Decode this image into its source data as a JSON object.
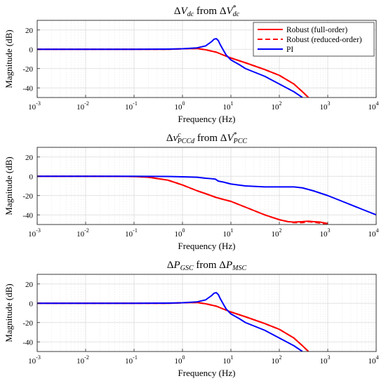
{
  "chart_data": [
    {
      "type": "line",
      "title": "ΔV_dc from ΔV*_dc",
      "xlabel": "Frequency (Hz)",
      "ylabel": "Magnitude (dB)",
      "xscale": "log",
      "xlim": [
        0.001,
        10000
      ],
      "ylim": [
        -50,
        30
      ],
      "yticks": [
        -40,
        -20,
        0,
        20
      ],
      "xticks": [
        "10^-3",
        "10^-2",
        "10^-1",
        "10^0",
        "10^1",
        "10^2",
        "10^3",
        "10^4"
      ],
      "grid": true,
      "legend": {
        "location": "top-right",
        "entries": [
          "Robust (full-order)",
          "Robust (reduced-order)",
          "PI"
        ]
      },
      "series": [
        {
          "name": "Robust (full-order)",
          "color": "#ff0000",
          "dash": "solid",
          "x": [
            0.001,
            0.01,
            0.1,
            0.5,
            1,
            2,
            3,
            5,
            7,
            10,
            20,
            50,
            100,
            200,
            300,
            400
          ],
          "y": [
            0,
            0,
            0,
            0,
            0.5,
            0.8,
            -0.5,
            -3,
            -6,
            -9,
            -14,
            -21,
            -27,
            -36,
            -44,
            -50
          ]
        },
        {
          "name": "Robust (reduced-order)",
          "color": "#ff0000",
          "dash": "dashed",
          "x": [
            0.001,
            0.01,
            0.1,
            0.5,
            1,
            2,
            3,
            5,
            7,
            10,
            20,
            50,
            100,
            200,
            300,
            400
          ],
          "y": [
            0,
            0,
            0,
            0,
            0.5,
            0.8,
            -0.5,
            -3,
            -6,
            -9,
            -14,
            -21,
            -27,
            -36,
            -44,
            -50
          ]
        },
        {
          "name": "PI",
          "color": "#0000ff",
          "dash": "solid",
          "x": [
            0.001,
            0.01,
            0.1,
            0.5,
            1,
            2,
            3,
            4,
            4.5,
            5,
            5.5,
            6,
            7,
            8,
            10,
            15,
            20,
            50,
            100,
            200,
            300
          ],
          "y": [
            0,
            0,
            0,
            0.2,
            0.5,
            1.5,
            3.5,
            8,
            10.5,
            11,
            9,
            5,
            -1,
            -6,
            -11,
            -16,
            -20,
            -28,
            -36,
            -44,
            -50
          ]
        }
      ]
    },
    {
      "type": "line",
      "title": "Δv^c_PCCd from ΔV*_PCC",
      "xlabel": "Frequency (Hz)",
      "ylabel": "Magnitude (dB)",
      "xscale": "log",
      "xlim": [
        0.001,
        10000
      ],
      "ylim": [
        -50,
        30
      ],
      "yticks": [
        -40,
        -20,
        0,
        20
      ],
      "xticks": [
        "10^-3",
        "10^-2",
        "10^-1",
        "10^0",
        "10^1",
        "10^2",
        "10^3",
        "10^4"
      ],
      "grid": true,
      "series": [
        {
          "name": "Robust (full-order)",
          "color": "#ff0000",
          "dash": "solid",
          "x": [
            0.001,
            0.01,
            0.05,
            0.1,
            0.2,
            0.5,
            1,
            2,
            3,
            5,
            7,
            10,
            20,
            50,
            100,
            150,
            200,
            300,
            400,
            500,
            700,
            1000
          ],
          "y": [
            0,
            0,
            -0.1,
            -0.3,
            -1,
            -4,
            -9,
            -15,
            -18,
            -22,
            -24,
            -26,
            -32,
            -40,
            -45,
            -47,
            -47.5,
            -47,
            -46.5,
            -47,
            -47.5,
            -49
          ]
        },
        {
          "name": "Robust (reduced-order)",
          "color": "#ff0000",
          "dash": "dashed",
          "x": [
            0.001,
            0.01,
            0.05,
            0.1,
            0.2,
            0.5,
            1,
            2,
            3,
            5,
            7,
            10,
            20,
            50,
            100,
            150,
            200,
            300,
            400,
            500,
            700,
            1000
          ],
          "y": [
            0,
            0,
            -0.1,
            -0.3,
            -1,
            -4,
            -9,
            -15,
            -18,
            -22,
            -24,
            -26,
            -32,
            -40,
            -45,
            -47,
            -48,
            -48,
            -47,
            -47.5,
            -48.5,
            -50
          ]
        },
        {
          "name": "PI",
          "color": "#0000ff",
          "dash": "solid",
          "x": [
            0.001,
            0.01,
            0.1,
            0.5,
            1,
            2,
            3,
            4,
            4.8,
            5.5,
            7,
            10,
            20,
            50,
            100,
            200,
            300,
            500,
            1000,
            2000,
            5000,
            10000
          ],
          "y": [
            0,
            0,
            0,
            -0.2,
            -0.5,
            -1,
            -2,
            -2.5,
            -3,
            -5,
            -6,
            -8,
            -10,
            -11,
            -11,
            -11,
            -12,
            -15,
            -20,
            -26,
            -34,
            -40
          ]
        }
      ]
    },
    {
      "type": "line",
      "title": "ΔP_GSC from ΔP_MSC",
      "xlabel": "Frequency (Hz)",
      "ylabel": "Magnitude (dB)",
      "xscale": "log",
      "xlim": [
        0.001,
        10000
      ],
      "ylim": [
        -50,
        30
      ],
      "yticks": [
        -40,
        -20,
        0,
        20
      ],
      "xticks": [
        "10^-3",
        "10^-2",
        "10^-1",
        "10^0",
        "10^1",
        "10^2",
        "10^3",
        "10^4"
      ],
      "grid": true,
      "series": [
        {
          "name": "Robust (full-order)",
          "color": "#ff0000",
          "dash": "solid",
          "x": [
            0.001,
            0.01,
            0.1,
            0.5,
            1,
            2,
            3,
            5,
            7,
            10,
            20,
            50,
            100,
            200,
            300,
            400
          ],
          "y": [
            0,
            0,
            0,
            0,
            0.5,
            0.8,
            -0.5,
            -3,
            -6,
            -9,
            -14,
            -21,
            -27,
            -36,
            -44,
            -50
          ]
        },
        {
          "name": "Robust (reduced-order)",
          "color": "#ff0000",
          "dash": "dashed",
          "x": [
            0.001,
            0.01,
            0.1,
            0.5,
            1,
            2,
            3,
            5,
            7,
            10,
            20,
            50,
            100,
            200,
            300,
            400
          ],
          "y": [
            0,
            0,
            0,
            0,
            0.5,
            0.8,
            -0.5,
            -3,
            -6,
            -9,
            -14,
            -21,
            -27,
            -36,
            -44,
            -50
          ]
        },
        {
          "name": "PI",
          "color": "#0000ff",
          "dash": "solid",
          "x": [
            0.001,
            0.01,
            0.1,
            0.5,
            1,
            2,
            3,
            4,
            4.5,
            5,
            5.5,
            6,
            7,
            8,
            10,
            15,
            20,
            50,
            100,
            200,
            300
          ],
          "y": [
            0,
            0,
            0,
            0.2,
            0.5,
            1.5,
            3.5,
            8,
            10.5,
            11,
            9,
            5,
            -1,
            -6,
            -11,
            -16,
            -20,
            -28,
            -36,
            -44,
            -50
          ]
        }
      ]
    }
  ]
}
